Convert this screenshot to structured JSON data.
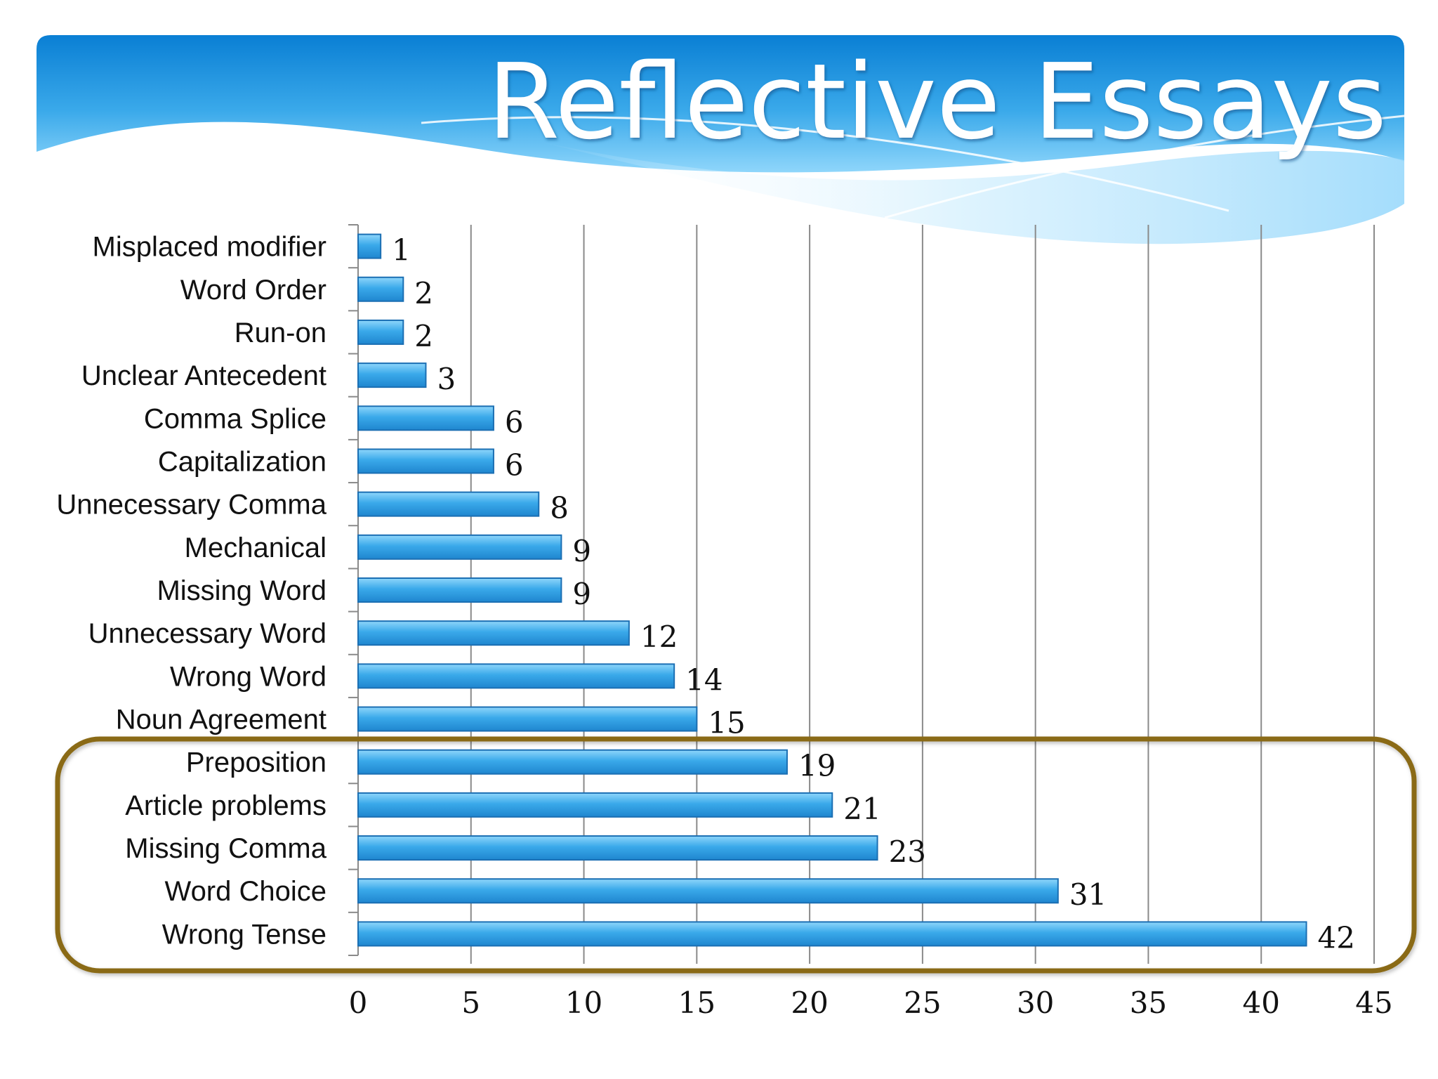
{
  "title": "Reflective Essays",
  "colors": {
    "banner_dark": "#0a7fd4",
    "banner_light": "#62c4f3",
    "bar": "#3aa9ea",
    "bar_edge": "#1b6fb3",
    "grid": "#8a8a8a",
    "highlight_box": "#8a6a14",
    "text": "#111111"
  },
  "chart_data": {
    "type": "bar",
    "orientation": "horizontal",
    "categories": [
      "Misplaced modifier",
      "Word Order",
      "Run-on",
      "Unclear Antecedent",
      "Comma Splice",
      "Capitalization",
      "Unnecessary Comma",
      "Mechanical",
      "Missing Word",
      "Unnecessary Word",
      "Wrong Word",
      "Noun Agreement",
      "Preposition",
      "Article problems",
      "Missing Comma",
      "Word Choice",
      "Wrong Tense"
    ],
    "values": [
      1,
      2,
      2,
      3,
      6,
      6,
      8,
      9,
      9,
      12,
      14,
      15,
      19,
      21,
      23,
      31,
      42
    ],
    "value_labels": [
      "1",
      "2",
      "2",
      "3",
      "6",
      "6",
      "8",
      "9",
      "9",
      "12",
      "14",
      "15",
      "19",
      "21",
      "23",
      "31",
      "42"
    ],
    "xlim": [
      0,
      45
    ],
    "xticks": [
      "0",
      "5",
      "10",
      "15",
      "20",
      "25",
      "30",
      "35",
      "40",
      "45"
    ],
    "grid": "vertical",
    "legend": "none",
    "highlighted_categories": [
      "Preposition",
      "Article problems",
      "Missing Comma",
      "Word Choice",
      "Wrong Tense"
    ]
  }
}
